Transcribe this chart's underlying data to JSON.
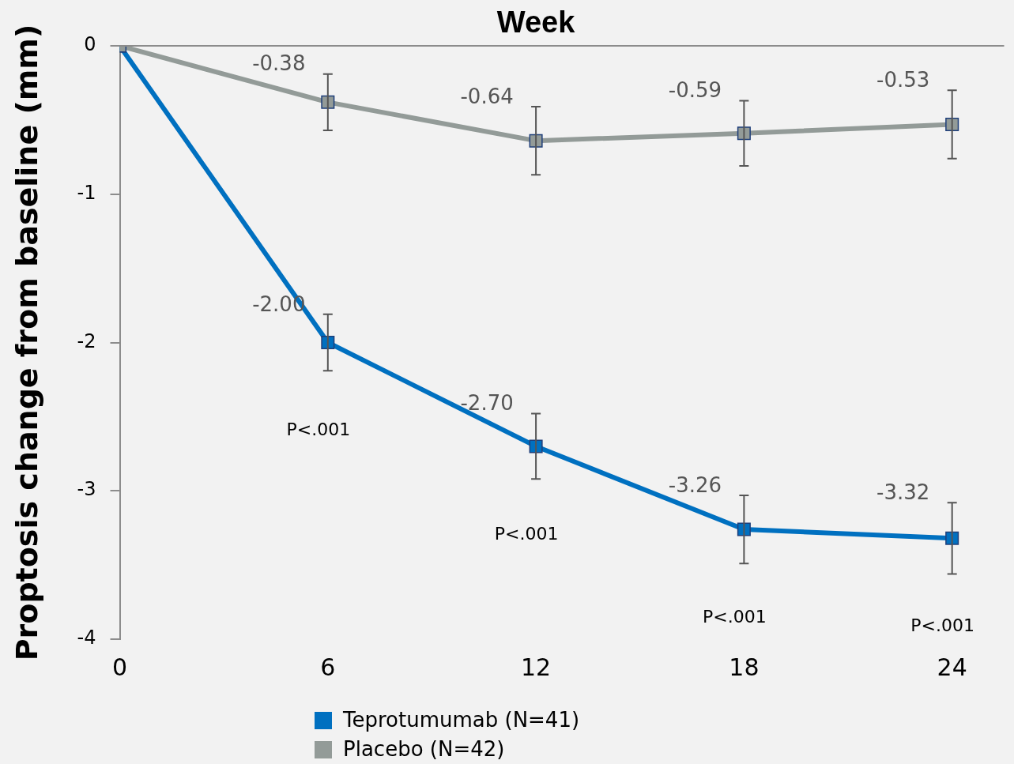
{
  "chart_data": {
    "type": "line",
    "xlabel": "Week",
    "ylabel": "Proptosis change from baseline (mm)",
    "x": [
      0,
      6,
      12,
      18,
      24
    ],
    "xlim": [
      0,
      25.5
    ],
    "xticks": [
      0,
      6,
      12,
      18,
      24
    ],
    "ylim": [
      -4,
      0
    ],
    "yticks": [
      -4,
      -3,
      -2,
      -1,
      0
    ],
    "grid": false,
    "legend": "bottom",
    "marker": "square",
    "line_style": "solid",
    "series": [
      {
        "name": "Placebo (N=42)",
        "color": "#939b98",
        "values": [
          0,
          -0.38,
          -0.64,
          -0.59,
          -0.53
        ],
        "errors": [
          null,
          0.19,
          0.23,
          0.22,
          0.23
        ],
        "value_labels": [
          null,
          "-0.38",
          "-0.64",
          "-0.59",
          "-0.53"
        ]
      },
      {
        "name": "Teprotumumab (N=41)",
        "color": "#0070c0",
        "values": [
          0,
          -2.0,
          -2.7,
          -3.26,
          -3.32
        ],
        "errors": [
          null,
          0.19,
          0.22,
          0.23,
          0.24
        ],
        "value_labels": [
          null,
          "-2.00",
          "-2.70",
          "-3.26",
          "-3.32"
        ]
      }
    ],
    "annotations": [
      "P<.001",
      "P<.001",
      "P<.001",
      "P<.001"
    ]
  }
}
